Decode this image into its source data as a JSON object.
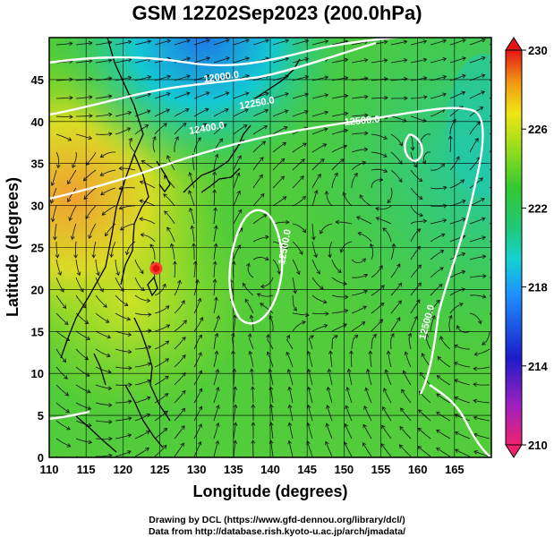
{
  "title": "GSM 12Z02Sep2023 (200.0hPa)",
  "x_axis": {
    "label": "Longitude (degrees)",
    "ticks": [
      "110",
      "115",
      "120",
      "125",
      "130",
      "135",
      "140",
      "145",
      "150",
      "155",
      "160",
      "165"
    ]
  },
  "y_axis": {
    "label": "Latitude  (degrees)",
    "ticks": [
      "0",
      "5",
      "10",
      "15",
      "20",
      "25",
      "30",
      "35",
      "40",
      "45"
    ]
  },
  "colorbar": {
    "ticks": [
      "230",
      "226",
      "222",
      "218",
      "214",
      "210"
    ],
    "colors": [
      "#f0226e",
      "#a020c0",
      "#1c1cc8",
      "#1e90ff",
      "#14d2d2",
      "#22c878",
      "#32c832",
      "#8cdc1e",
      "#f0e614",
      "#f09614",
      "#e61414"
    ]
  },
  "contours": [
    {
      "label": "12000.0"
    },
    {
      "label": "12250.0"
    },
    {
      "label": "12400.0"
    },
    {
      "label": "12500.0"
    },
    {
      "label": "12500.0"
    },
    {
      "label": "12500.0"
    }
  ],
  "typhoon_marker": {
    "lon": 124.5,
    "lat": 22.5
  },
  "credits": {
    "line1": "Drawing by DCL (https://www.gfd-dennou.org/library/dcl/)",
    "line2": "Data from http://database.rish.kyoto-u.ac.jp/arch/jmadata/"
  }
}
